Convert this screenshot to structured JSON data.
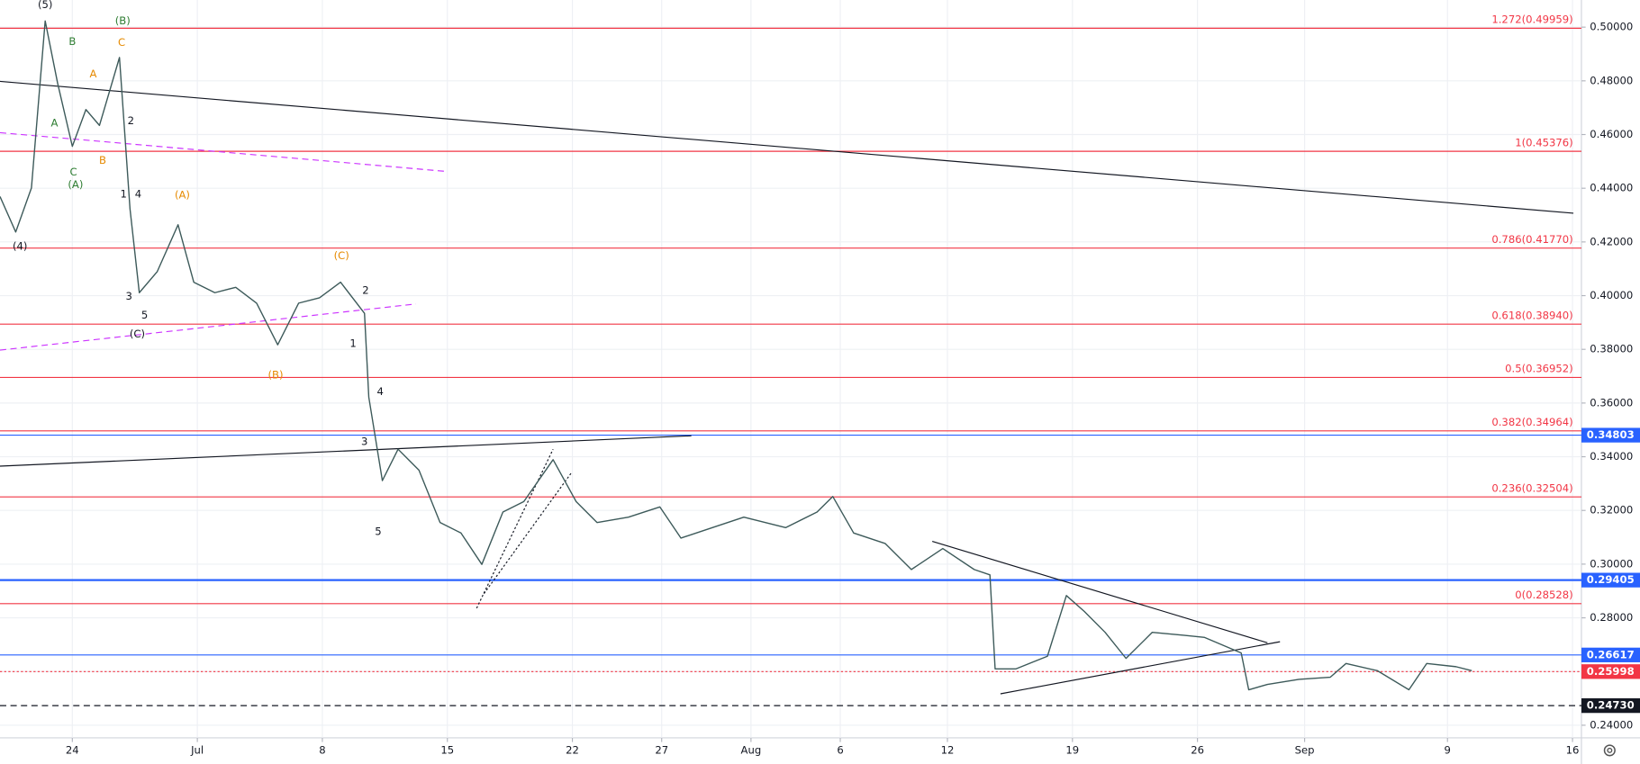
{
  "chart_data": {
    "type": "line",
    "xlim": [
      -4.05,
      84.5
    ],
    "ylim": [
      0.2353,
      0.5101
    ],
    "grid": true,
    "xticks": [
      {
        "value": 0,
        "label": "24"
      },
      {
        "value": 7,
        "label": "Jul"
      },
      {
        "value": 14,
        "label": "8"
      },
      {
        "value": 21,
        "label": "15"
      },
      {
        "value": 28,
        "label": "22"
      },
      {
        "value": 33,
        "label": "27"
      },
      {
        "value": 38,
        "label": "Aug"
      },
      {
        "value": 43,
        "label": "6"
      },
      {
        "value": 49,
        "label": "12"
      },
      {
        "value": 56,
        "label": "19"
      },
      {
        "value": 63,
        "label": "26"
      },
      {
        "value": 69,
        "label": "Sep"
      },
      {
        "value": 77,
        "label": "9"
      },
      {
        "value": 84,
        "label": "16"
      }
    ],
    "yticks": [
      {
        "value": 0.24,
        "label": "0.24000"
      },
      {
        "value": 0.26,
        "label": "0.26000"
      },
      {
        "value": 0.28,
        "label": "0.28000"
      },
      {
        "value": 0.3,
        "label": "0.30000"
      },
      {
        "value": 0.32,
        "label": "0.32000"
      },
      {
        "value": 0.34,
        "label": "0.34000"
      },
      {
        "value": 0.36,
        "label": "0.36000"
      },
      {
        "value": 0.38,
        "label": "0.38000"
      },
      {
        "value": 0.4,
        "label": "0.40000"
      },
      {
        "value": 0.42,
        "label": "0.42000"
      },
      {
        "value": 0.44,
        "label": "0.44000"
      },
      {
        "value": 0.46,
        "label": "0.46000"
      },
      {
        "value": 0.48,
        "label": "0.48000"
      },
      {
        "value": 0.5,
        "label": "0.50000"
      }
    ],
    "x": [
      -4.05,
      -3.17,
      -2.29,
      -1.52,
      -0.82,
      0,
      0.76,
      1.52,
      2.64,
      3.23,
      3.75,
      4.75,
      5.92,
      6.8,
      7.98,
      9.15,
      10.32,
      11.5,
      12.67,
      13.84,
      15.02,
      16.36,
      16.6,
      17.36,
      18.24,
      19.41,
      20.59,
      21.76,
      22.93,
      24.11,
      25.28,
      26.92,
      28.21,
      29.38,
      31.14,
      32.9,
      34.08,
      35.84,
      37.6,
      39.94,
      41.7,
      42.58,
      43.75,
      45.51,
      46.98,
      48.74,
      50.5,
      51.38,
      51.67,
      52.84,
      54.6,
      55.66,
      56.66,
      57.83,
      59.0,
      60.47,
      62.23,
      63.4,
      65.45,
      65.87,
      66.92,
      68.68,
      70.44,
      71.32,
      73.08,
      74.84,
      75.84,
      77.48,
      78.36
    ],
    "series": [
      {
        "color": "#3d5a5a",
        "values": [
          0.4369,
          0.4237,
          0.4401,
          0.5023,
          0.479,
          0.4556,
          0.4693,
          0.4634,
          0.4887,
          0.4323,
          0.4011,
          0.4089,
          0.4264,
          0.405,
          0.4011,
          0.4031,
          0.3972,
          0.3817,
          0.3972,
          0.3992,
          0.405,
          0.3934,
          0.3622,
          0.3311,
          0.3428,
          0.335,
          0.3155,
          0.3116,
          0.2999,
          0.3194,
          0.3233,
          0.3389,
          0.3233,
          0.3155,
          0.3175,
          0.3213,
          0.3097,
          0.3136,
          0.3175,
          0.3136,
          0.3194,
          0.3252,
          0.3116,
          0.3077,
          0.298,
          0.3058,
          0.298,
          0.296,
          0.261,
          0.261,
          0.2657,
          0.2883,
          0.2824,
          0.2746,
          0.2649,
          0.2746,
          0.2735,
          0.2727,
          0.2669,
          0.2532,
          0.2552,
          0.2571,
          0.2579,
          0.263,
          0.2603,
          0.2532,
          0.263,
          0.2618,
          0.2603
        ]
      }
    ],
    "levels": [
      {
        "value": 0.49959,
        "label": "1.272(0.49959)",
        "color": "#f23645",
        "style": "solid"
      },
      {
        "value": 0.45376,
        "label": "1(0.45376)",
        "color": "#f23645",
        "style": "solid"
      },
      {
        "value": 0.4177,
        "label": "0.786(0.41770)",
        "color": "#f23645",
        "style": "solid"
      },
      {
        "value": 0.3894,
        "label": "0.618(0.38940)",
        "color": "#f23645",
        "style": "solid"
      },
      {
        "value": 0.36952,
        "label": "0.5(0.36952)",
        "color": "#f23645",
        "style": "solid"
      },
      {
        "value": 0.34964,
        "label": "0.382(0.34964)",
        "color": "#f23645",
        "style": "solid"
      },
      {
        "value": 0.32504,
        "label": "0.236(0.32504)",
        "color": "#f23645",
        "style": "solid"
      },
      {
        "value": 0.28528,
        "label": "0(0.28528)",
        "color": "#f23645",
        "style": "solid"
      },
      {
        "value": 0.34803,
        "tag": "0.34803",
        "color": "#2962ff",
        "style": "solid"
      },
      {
        "value": 0.29405,
        "tag": "0.29405",
        "color": "#2962ff",
        "style": "thick"
      },
      {
        "value": 0.26617,
        "tag": "0.26617",
        "color": "#2962ff",
        "style": "solid"
      },
      {
        "value": 0.25998,
        "tag": "0.25998",
        "color": "#f23645",
        "style": "dotted"
      },
      {
        "value": 0.2473,
        "tag": "0.24730",
        "color": "#131722",
        "style": "dashed"
      }
    ],
    "trendlines": [
      {
        "x": [
          -4.05,
          84.05
        ],
        "y": [
          0.4798,
          0.4307
        ],
        "color": "#131722",
        "style": "solid"
      },
      {
        "x": [
          -4.05,
          34.66
        ],
        "y": [
          0.3365,
          0.3478
        ],
        "color": "#131722",
        "style": "solid"
      },
      {
        "x": [
          48.15,
          66.92
        ],
        "y": [
          0.3085,
          0.2707
        ],
        "color": "#131722",
        "style": "solid"
      },
      {
        "x": [
          51.97,
          67.62
        ],
        "y": [
          0.2517,
          0.2711
        ],
        "color": "#131722",
        "style": "solid"
      },
      {
        "x": [
          -4.05,
          20.88
        ],
        "y": [
          0.4607,
          0.4463
        ],
        "color": "#cc33ff",
        "style": "dashed"
      },
      {
        "x": [
          -4.05,
          19.24
        ],
        "y": [
          0.3797,
          0.3969
        ],
        "color": "#cc33ff",
        "style": "dashed"
      },
      {
        "x": [
          22.64,
          26.92
        ],
        "y": [
          0.2836,
          0.3428
        ],
        "color": "#131722",
        "style": "dotted"
      },
      {
        "x": [
          23.05,
          27.92
        ],
        "y": [
          0.289,
          0.3338
        ],
        "color": "#131722",
        "style": "dotted"
      }
    ],
    "annotations": [
      {
        "text": "(5)",
        "x": -1.52,
        "y": 0.5082,
        "color": "#131722"
      },
      {
        "text": "(B)",
        "x": 2.82,
        "y": 0.5023,
        "color": "#2e7d32"
      },
      {
        "text": "B",
        "x": 0,
        "y": 0.4946,
        "color": "#2e7d32"
      },
      {
        "text": "C",
        "x": 2.76,
        "y": 0.4942,
        "color": "#e68a00"
      },
      {
        "text": "A",
        "x": 1.17,
        "y": 0.4825,
        "color": "#e68a00"
      },
      {
        "text": "A",
        "x": -1.0,
        "y": 0.4642,
        "color": "#2e7d32"
      },
      {
        "text": "2",
        "x": 3.28,
        "y": 0.465,
        "color": "#131722"
      },
      {
        "text": "C",
        "x": 0.06,
        "y": 0.4459,
        "color": "#2e7d32"
      },
      {
        "text": "(A)",
        "x": 0.18,
        "y": 0.4412,
        "color": "#2e7d32"
      },
      {
        "text": "B",
        "x": 1.7,
        "y": 0.4502,
        "color": "#e68a00"
      },
      {
        "text": "1",
        "x": 2.87,
        "y": 0.4377,
        "color": "#131722"
      },
      {
        "text": "4",
        "x": 3.69,
        "y": 0.4377,
        "color": "#131722"
      },
      {
        "text": "(A)",
        "x": 6.16,
        "y": 0.4373,
        "color": "#e68a00"
      },
      {
        "text": "(4)",
        "x": -2.93,
        "y": 0.4183,
        "color": "#131722"
      },
      {
        "text": "3",
        "x": 3.17,
        "y": 0.3996,
        "color": "#131722"
      },
      {
        "text": "5",
        "x": 4.05,
        "y": 0.3926,
        "color": "#131722"
      },
      {
        "text": "(C)",
        "x": 3.64,
        "y": 0.3856,
        "color": "#131722"
      },
      {
        "text": "(C)",
        "x": 15.07,
        "y": 0.4148,
        "color": "#e68a00"
      },
      {
        "text": "2",
        "x": 16.42,
        "y": 0.4019,
        "color": "#131722"
      },
      {
        "text": "1",
        "x": 15.72,
        "y": 0.3821,
        "color": "#131722"
      },
      {
        "text": "(B)",
        "x": 11.38,
        "y": 0.3704,
        "color": "#e68a00"
      },
      {
        "text": "4",
        "x": 17.24,
        "y": 0.3642,
        "color": "#131722"
      },
      {
        "text": "3",
        "x": 16.36,
        "y": 0.3455,
        "color": "#131722"
      },
      {
        "text": "5",
        "x": 17.13,
        "y": 0.312,
        "color": "#131722"
      }
    ]
  }
}
